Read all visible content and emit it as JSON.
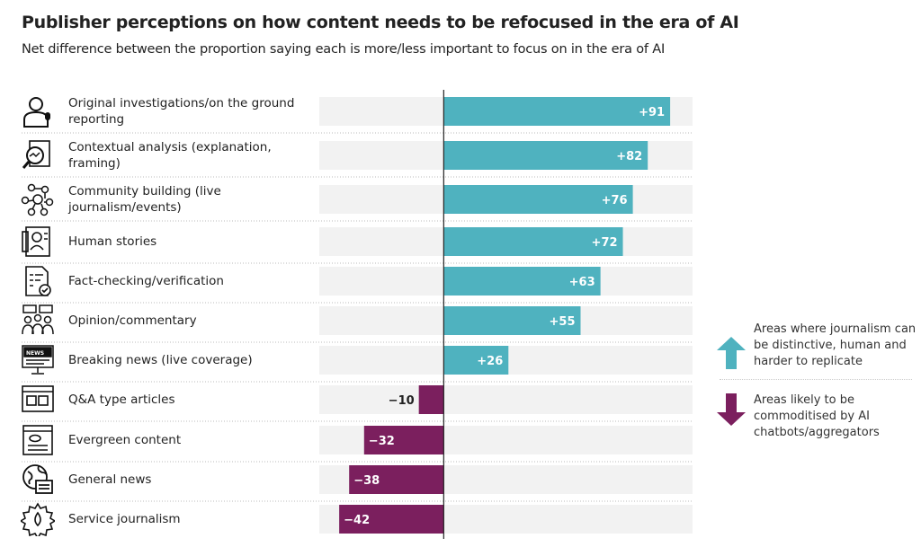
{
  "chart_data": {
    "type": "bar",
    "orientation": "horizontal",
    "title": "Publisher perceptions on how content needs to be refocused in the era of AI",
    "subtitle": "Net difference between the proportion saying each is more/less important to focus on in the era of AI",
    "categories": [
      "Original investigations/on the ground reporting",
      "Contextual analysis (explanation, framing)",
      "Community building (live journalism/events)",
      "Human stories",
      "Fact-checking/verification",
      "Opinion/commentary",
      "Breaking news (live coverage)",
      "Q&A type articles",
      "Evergreen content",
      "General news",
      "Service journalism"
    ],
    "values": [
      91,
      82,
      76,
      72,
      63,
      55,
      26,
      -10,
      -32,
      -38,
      -42
    ],
    "value_labels": [
      "+91",
      "+82",
      "+76",
      "+72",
      "+63",
      "+55",
      "+26",
      "−10",
      "−32",
      "−38",
      "−42"
    ],
    "icons": [
      "reporter-icon",
      "magnifier-analysis-icon",
      "community-network-icon",
      "human-story-icon",
      "fact-check-icon",
      "opinion-chat-icon",
      "breaking-news-icon",
      "qa-article-icon",
      "evergreen-document-icon",
      "general-news-globe-icon",
      "service-gear-icon"
    ],
    "xlim": [
      -50,
      100
    ],
    "grid": false,
    "colors": {
      "positive": "#4fb2bf",
      "negative": "#7b1f5e",
      "track": "#f2f2f2"
    },
    "legend": {
      "placement": "right",
      "entries": [
        {
          "label": "Areas where journalism can be distinctive, human and harder to replicate",
          "color": "#4fb2bf",
          "icon": "arrow-up-icon"
        },
        {
          "label": "Areas likely to be commoditised by AI chatbots/aggregators",
          "color": "#7b1f5e",
          "icon": "arrow-down-icon"
        }
      ]
    }
  }
}
